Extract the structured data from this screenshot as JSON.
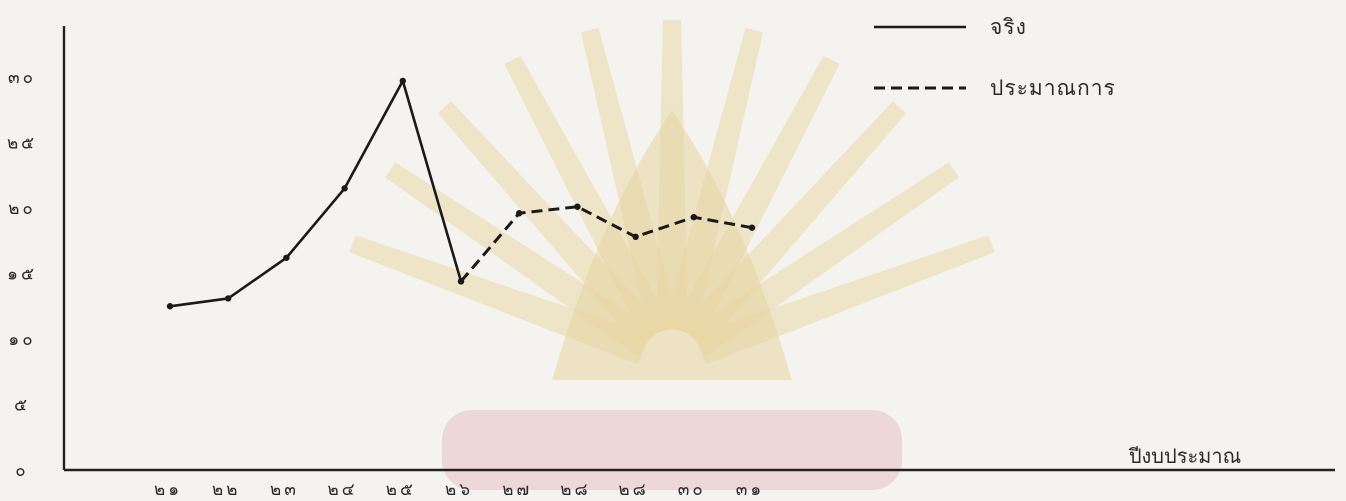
{
  "chart_data": {
    "type": "line",
    "title": "",
    "xlabel": "ปีงบประมาณ",
    "ylabel": "",
    "categories": [
      "๒๑",
      "๒๒",
      "๒๓",
      "๒๔",
      "๒๕",
      "๒๖",
      "๒๗",
      "๒๘",
      "๒๘",
      "๓๐",
      "๓๑"
    ],
    "y_ticks": [
      "๐",
      "๕",
      "๑๐",
      "๑๕",
      "๒๐",
      "๒๕",
      "๓๐"
    ],
    "ylim": [
      0,
      32
    ],
    "grid": false,
    "legend_position": "top-right",
    "series": [
      {
        "name": "จริง",
        "style": "solid",
        "color": "#1a1a1a",
        "values": [
          12.5,
          13.1,
          16.2,
          21.5,
          29.7,
          14.4,
          null,
          null,
          null,
          null,
          null
        ]
      },
      {
        "name": "ประมาณการ",
        "style": "dashed",
        "color": "#1a1a1a",
        "values": [
          null,
          null,
          null,
          null,
          null,
          14.4,
          19.6,
          20.1,
          17.8,
          19.3,
          18.5
        ]
      }
    ]
  }
}
